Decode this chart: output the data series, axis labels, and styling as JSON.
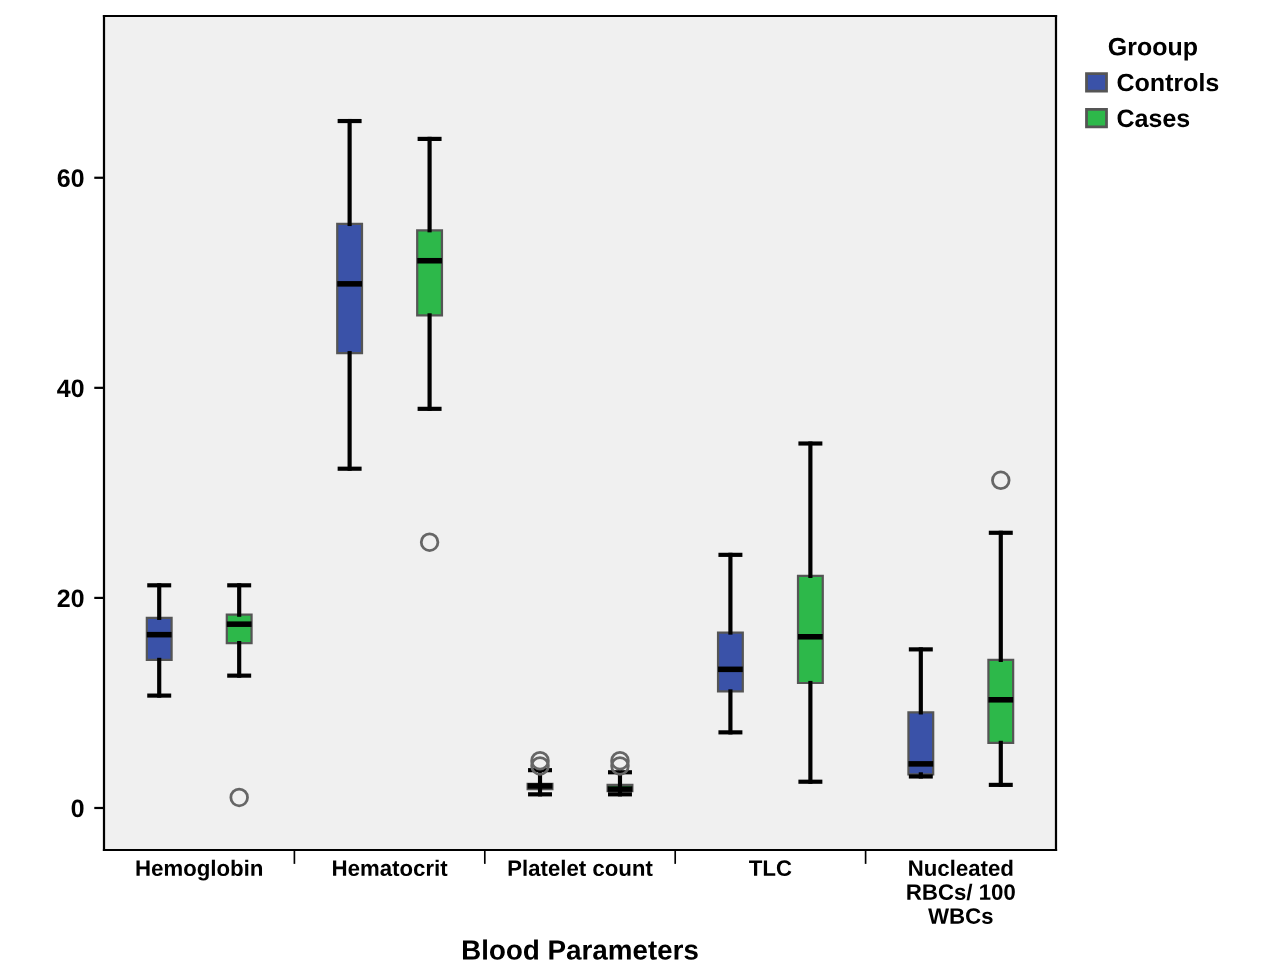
{
  "chart_data": {
    "type": "box",
    "xlabel": "Blood Parameters",
    "legend_title": "Grooup",
    "legend": "right",
    "categories": [
      "Hemoglobin",
      "Hematocrit",
      "Platelet count",
      "TLC",
      "Nucleated\nRBCs/ 100\nWBCs"
    ],
    "ylim": [
      -4,
      75.4
    ],
    "yticks": [
      0,
      20,
      40,
      60
    ],
    "grid": false,
    "series": [
      {
        "name": "Controls",
        "color": "#3a52a8",
        "boxes": [
          {
            "low": 10.7,
            "q1": 14.1,
            "median": 16.5,
            "q3": 18.1,
            "high": 21.2
          },
          {
            "low": 32.3,
            "q1": 43.3,
            "median": 49.9,
            "q3": 55.6,
            "high": 65.4
          },
          {
            "low": 1.3,
            "q1": 1.8,
            "median": 2.1,
            "q3": 2.3,
            "high": 3.6,
            "outliers": [
              4.0,
              4.5
            ]
          },
          {
            "low": 7.2,
            "q1": 11.1,
            "median": 13.2,
            "q3": 16.7,
            "high": 24.1
          },
          {
            "low": 3.0,
            "q1": 3.2,
            "median": 4.2,
            "q3": 9.1,
            "high": 15.1
          }
        ]
      },
      {
        "name": "Cases",
        "color": "#2db84a",
        "boxes": [
          {
            "low": 12.6,
            "q1": 15.7,
            "median": 17.5,
            "q3": 18.4,
            "high": 21.2,
            "outliers": [
              1.0
            ]
          },
          {
            "low": 38.0,
            "q1": 46.9,
            "median": 52.1,
            "q3": 55.0,
            "high": 63.7,
            "outliers": [
              25.3
            ]
          },
          {
            "low": 1.3,
            "q1": 1.6,
            "median": 1.8,
            "q3": 2.2,
            "high": 3.4,
            "outliers": [
              4.0,
              4.5
            ]
          },
          {
            "low": 2.5,
            "q1": 11.9,
            "median": 16.3,
            "q3": 22.1,
            "high": 34.7
          },
          {
            "low": 2.2,
            "q1": 6.2,
            "median": 10.3,
            "q3": 14.1,
            "high": 26.2,
            "outliers": [
              31.2
            ]
          }
        ]
      }
    ]
  }
}
